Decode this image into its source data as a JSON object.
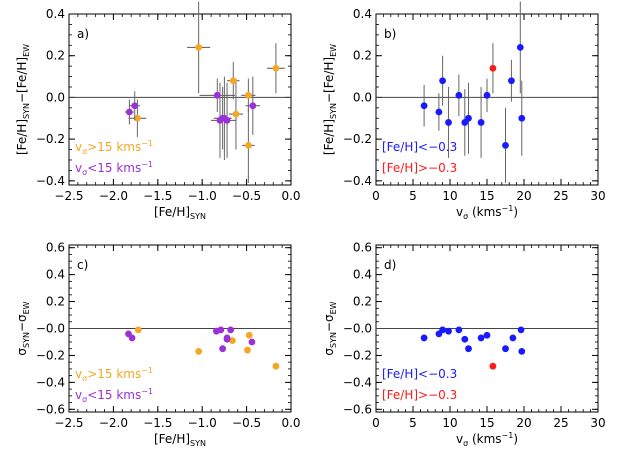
{
  "chart_data": [
    {
      "type": "scatter",
      "panel_label": "a)",
      "xlabel": "[Fe/H]",
      "xlabel_sub": "SYN",
      "ylabel_parts": [
        [
          "[Fe/H]",
          "SYN"
        ],
        [
          "−[Fe/H]",
          "EW"
        ]
      ],
      "xlim": [
        -2.5,
        0.0
      ],
      "ylim": [
        -0.42,
        0.4
      ],
      "xticks": [
        -2.5,
        -2.0,
        -1.5,
        -1.0,
        -0.5,
        0.0
      ],
      "xtick_labels": [
        "−2.5",
        "−2.0",
        "−1.5",
        "−1.0",
        "−0.5",
        "0.0"
      ],
      "yticks": [
        -0.4,
        -0.2,
        0.0,
        0.2,
        0.4
      ],
      "ytick_labels": [
        "−0.4",
        "−0.2",
        "0.0",
        "0.2",
        "0.4"
      ],
      "hline": 0,
      "legend_placement": "bottom-left",
      "legend": [
        {
          "text": "v",
          "sub": "σ",
          "rest": ">15 kms",
          "sup": "−1",
          "color": "#f5a623"
        },
        {
          "text": "v",
          "sub": "σ",
          "rest": "<15 kms",
          "sup": "−1",
          "color": "#9b30d9"
        }
      ],
      "series": [
        {
          "color": "#f5a623",
          "points": [
            {
              "x": -1.73,
              "y": -0.1,
              "xerr": 0.1,
              "yerr": 0.09
            },
            {
              "x": -1.04,
              "y": 0.24,
              "xerr": 0.13,
              "yerr": 0.22
            },
            {
              "x": -0.65,
              "y": 0.08,
              "xerr": 0.07,
              "yerr": 0.09
            },
            {
              "x": -0.62,
              "y": -0.08,
              "xerr": 0.08,
              "yerr": 0.17
            },
            {
              "x": -0.48,
              "y": 0.01,
              "xerr": 0.08,
              "yerr": 0.08
            },
            {
              "x": -0.48,
              "y": -0.23,
              "xerr": 0.07,
              "yerr": 0.18
            },
            {
              "x": -0.17,
              "y": 0.14,
              "xerr": 0.1,
              "yerr": 0.12
            }
          ]
        },
        {
          "color": "#9b30d9",
          "points": [
            {
              "x": -1.82,
              "y": -0.07,
              "xerr": 0.05,
              "yerr": 0.06
            },
            {
              "x": -1.76,
              "y": -0.04,
              "xerr": 0.06,
              "yerr": 0.07
            },
            {
              "x": -0.83,
              "y": 0.01,
              "xerr": 0.2,
              "yerr": 0.08
            },
            {
              "x": -0.8,
              "y": -0.11,
              "xerr": 0.1,
              "yerr": 0.18
            },
            {
              "x": -0.77,
              "y": -0.1,
              "xerr": 0.1,
              "yerr": 0.15
            },
            {
              "x": -0.75,
              "y": -0.1,
              "xerr": 0.08,
              "yerr": 0.2
            },
            {
              "x": -0.72,
              "y": -0.11,
              "xerr": 0.1,
              "yerr": 0.18
            },
            {
              "x": -0.43,
              "y": -0.04,
              "xerr": 0.08,
              "yerr": 0.14
            }
          ]
        }
      ]
    },
    {
      "type": "scatter",
      "panel_label": "b)",
      "xlabel": "v",
      "xlabel_sub": "σ",
      "xlabel_rest": " (kms",
      "xlabel_sup": "−1",
      "xlabel_end": ")",
      "ylabel_parts": [
        [
          "[Fe/H]",
          "SYN"
        ],
        [
          "−[Fe/H]",
          "EW"
        ]
      ],
      "xlim": [
        0,
        30
      ],
      "ylim": [
        -0.42,
        0.4
      ],
      "xticks": [
        0,
        5,
        10,
        15,
        20,
        25,
        30
      ],
      "xtick_labels": [
        "0",
        "5",
        "10",
        "15",
        "20",
        "25",
        "30"
      ],
      "yticks": [
        -0.4,
        -0.2,
        0.0,
        0.2,
        0.4
      ],
      "ytick_labels": [
        "−0.4",
        "−0.2",
        "0.0",
        "0.2",
        "0.4"
      ],
      "hline": 0,
      "legend_placement": "bottom-left",
      "legend": [
        {
          "text": "[Fe/H]<−0.3",
          "color": "#1a1aff"
        },
        {
          "text": "[Fe/H]>−0.3",
          "color": "#ff1a1a"
        }
      ],
      "series": [
        {
          "color": "#1a1aff",
          "points": [
            {
              "x": 6.5,
              "y": -0.04,
              "yerr": 0.1
            },
            {
              "x": 8.5,
              "y": -0.07,
              "yerr": 0.09
            },
            {
              "x": 9.0,
              "y": 0.08,
              "yerr": 0.12
            },
            {
              "x": 9.8,
              "y": -0.12,
              "yerr": 0.17
            },
            {
              "x": 11.2,
              "y": 0.01,
              "yerr": 0.1
            },
            {
              "x": 12.0,
              "y": -0.12,
              "yerr": 0.16
            },
            {
              "x": 12.5,
              "y": -0.1,
              "yerr": 0.17
            },
            {
              "x": 14.2,
              "y": -0.12,
              "yerr": 0.17
            },
            {
              "x": 15.0,
              "y": 0.01,
              "yerr": 0.08
            },
            {
              "x": 17.5,
              "y": -0.23,
              "yerr": 0.18
            },
            {
              "x": 18.3,
              "y": 0.08,
              "yerr": 0.1
            },
            {
              "x": 19.5,
              "y": 0.24,
              "yerr": 0.22
            },
            {
              "x": 19.7,
              "y": -0.1,
              "yerr": 0.18
            }
          ]
        },
        {
          "color": "#ff1a1a",
          "points": [
            {
              "x": 15.8,
              "y": 0.14,
              "yerr": 0.12
            }
          ]
        }
      ]
    },
    {
      "type": "scatter",
      "panel_label": "c)",
      "xlabel": "[Fe/H]",
      "xlabel_sub": "SYN",
      "ylabel_parts": [
        [
          "σ",
          "SYN"
        ],
        [
          "−σ",
          "EW"
        ]
      ],
      "xlim": [
        -2.5,
        0.0
      ],
      "ylim": [
        -0.62,
        0.62
      ],
      "xticks": [
        -2.5,
        -2.0,
        -1.5,
        -1.0,
        -0.5,
        0.0
      ],
      "xtick_labels": [
        "−2.5",
        "−2.0",
        "−1.5",
        "−1.0",
        "−0.5",
        "0.0"
      ],
      "yticks": [
        -0.6,
        -0.4,
        -0.2,
        0.0,
        0.2,
        0.4,
        0.6
      ],
      "ytick_labels": [
        "−0.6",
        "−0.4",
        "−0.2",
        "−0.0",
        "0.2",
        "0.4",
        "0.6"
      ],
      "hline": 0,
      "legend_placement": "bottom-left",
      "legend": [
        {
          "text": "v",
          "sub": "σ",
          "rest": ">15 kms",
          "sup": "−1",
          "color": "#f5a623"
        },
        {
          "text": "v",
          "sub": "σ",
          "rest": "<15 kms",
          "sup": "−1",
          "color": "#9b30d9"
        }
      ],
      "series": [
        {
          "color": "#f5a623",
          "points": [
            {
              "x": -1.72,
              "y": -0.01
            },
            {
              "x": -1.04,
              "y": -0.17
            },
            {
              "x": -0.66,
              "y": -0.09
            },
            {
              "x": -0.47,
              "y": -0.05
            },
            {
              "x": -0.49,
              "y": -0.16
            },
            {
              "x": -0.17,
              "y": -0.28
            }
          ]
        },
        {
          "color": "#9b30d9",
          "points": [
            {
              "x": -1.83,
              "y": -0.04
            },
            {
              "x": -1.79,
              "y": -0.07
            },
            {
              "x": -0.84,
              "y": -0.02
            },
            {
              "x": -0.79,
              "y": -0.01
            },
            {
              "x": -0.77,
              "y": -0.15
            },
            {
              "x": -0.72,
              "y": -0.07
            },
            {
              "x": -0.68,
              "y": -0.01
            },
            {
              "x": -0.44,
              "y": -0.1
            },
            {
              "x": -0.72,
              "y": -0.08
            }
          ]
        }
      ]
    },
    {
      "type": "scatter",
      "panel_label": "d)",
      "xlabel": "v",
      "xlabel_sub": "σ",
      "xlabel_rest": " (kms",
      "xlabel_sup": "−1",
      "xlabel_end": ")",
      "ylabel_parts": [
        [
          "σ",
          "SYN"
        ],
        [
          "−σ",
          "EW"
        ]
      ],
      "xlim": [
        0,
        30
      ],
      "ylim": [
        -0.62,
        0.62
      ],
      "xticks": [
        0,
        5,
        10,
        15,
        20,
        25,
        30
      ],
      "xtick_labels": [
        "0",
        "5",
        "10",
        "15",
        "20",
        "25",
        "30"
      ],
      "yticks": [
        -0.6,
        -0.4,
        -0.2,
        0.0,
        0.2,
        0.4,
        0.6
      ],
      "ytick_labels": [
        "−0.6",
        "−0.4",
        "−0.2",
        "−0.0",
        "0.2",
        "0.4",
        "0.6"
      ],
      "hline": 0,
      "legend_placement": "bottom-left",
      "legend": [
        {
          "text": "[Fe/H]<−0.3",
          "color": "#1a1aff"
        },
        {
          "text": "[Fe/H]>−0.3",
          "color": "#ff1a1a"
        }
      ],
      "series": [
        {
          "color": "#1a1aff",
          "points": [
            {
              "x": 6.5,
              "y": -0.07
            },
            {
              "x": 8.5,
              "y": -0.04
            },
            {
              "x": 9.0,
              "y": -0.01
            },
            {
              "x": 9.8,
              "y": -0.02
            },
            {
              "x": 11.2,
              "y": -0.01
            },
            {
              "x": 12.0,
              "y": -0.08
            },
            {
              "x": 12.5,
              "y": -0.15
            },
            {
              "x": 14.2,
              "y": -0.07
            },
            {
              "x": 15.0,
              "y": -0.05
            },
            {
              "x": 17.5,
              "y": -0.15
            },
            {
              "x": 18.5,
              "y": -0.07
            },
            {
              "x": 19.6,
              "y": -0.01
            },
            {
              "x": 19.7,
              "y": -0.17
            }
          ]
        },
        {
          "color": "#ff1a1a",
          "points": [
            {
              "x": 15.8,
              "y": -0.28
            }
          ]
        }
      ]
    }
  ]
}
